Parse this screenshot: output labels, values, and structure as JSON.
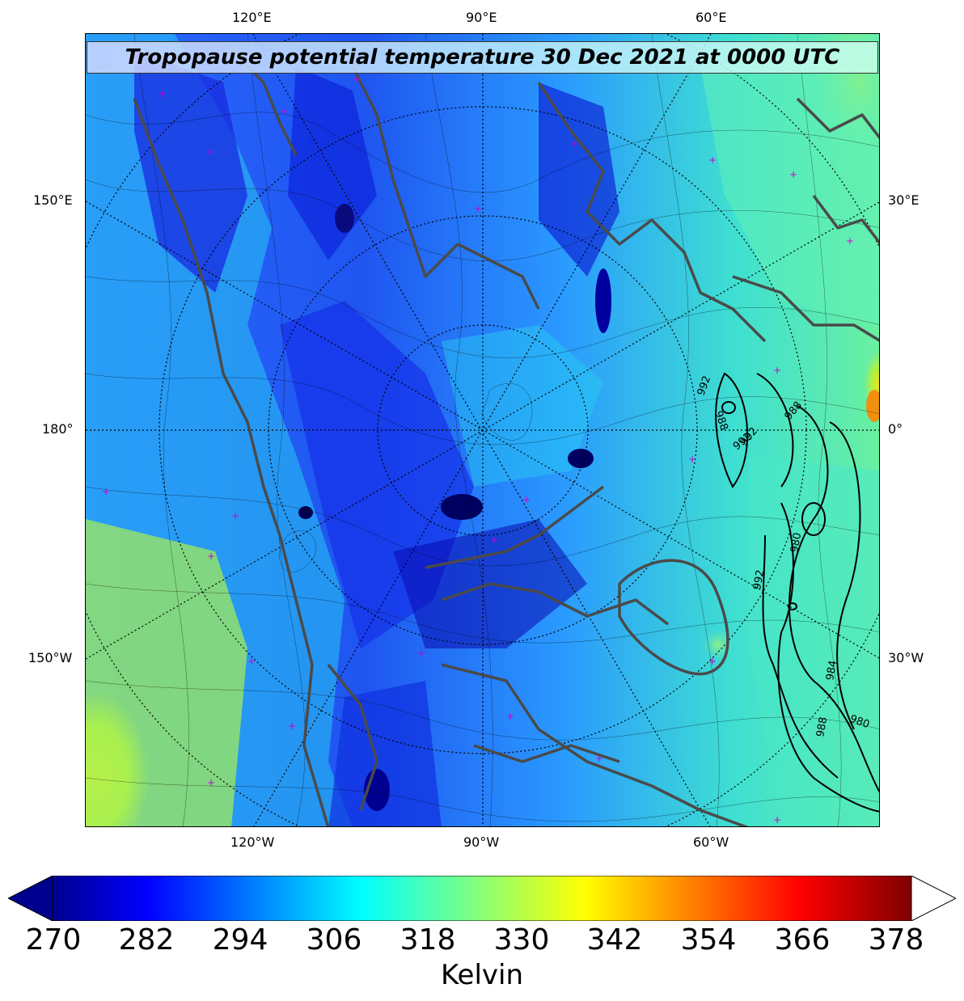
{
  "map": {
    "title": "Tropopause potential temperature 30 Dec 2021 at 0000 UTC",
    "longitude_labels_top": [
      "120°E",
      "90°E",
      "60°E"
    ],
    "longitude_labels_bottom": [
      "120°W",
      "90°W",
      "60°W"
    ],
    "latitude_labels_left": [
      "150°E",
      "180°",
      "150°W"
    ],
    "latitude_labels_right": [
      "30°E",
      "0°",
      "30°W"
    ],
    "pressure_contour_labels": [
      "992",
      "988",
      "992",
      "988",
      "992",
      "980",
      "992",
      "984",
      "980",
      "988"
    ],
    "colors": {
      "coastline": "#4a4a4a",
      "station_marker": "#cc00cc",
      "graticule": "#000000",
      "pressure_contour": "#000000"
    }
  },
  "colorbar": {
    "ticks": [
      "270",
      "282",
      "294",
      "306",
      "318",
      "330",
      "342",
      "354",
      "366",
      "378"
    ],
    "unit": "Kelvin",
    "range": [
      270,
      380
    ],
    "colormap": "jet",
    "extend": "both"
  }
}
